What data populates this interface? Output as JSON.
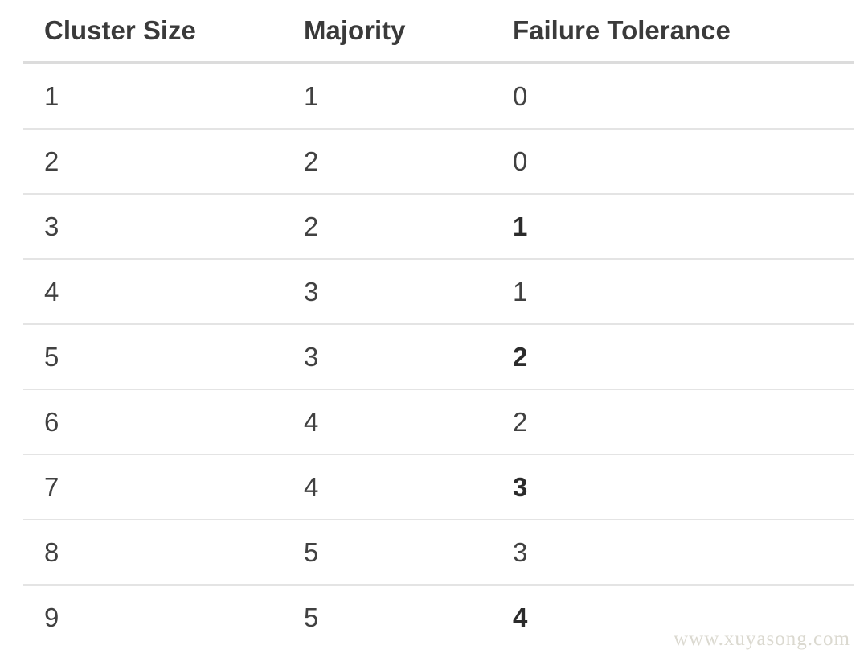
{
  "table": {
    "columns": [
      "Cluster Size",
      "Majority",
      "Failure Tolerance"
    ],
    "rows": [
      {
        "cluster_size": "1",
        "majority": "1",
        "failure_tolerance": "0",
        "ft_bold": false
      },
      {
        "cluster_size": "2",
        "majority": "2",
        "failure_tolerance": "0",
        "ft_bold": false
      },
      {
        "cluster_size": "3",
        "majority": "2",
        "failure_tolerance": "1",
        "ft_bold": true
      },
      {
        "cluster_size": "4",
        "majority": "3",
        "failure_tolerance": "1",
        "ft_bold": false
      },
      {
        "cluster_size": "5",
        "majority": "3",
        "failure_tolerance": "2",
        "ft_bold": true
      },
      {
        "cluster_size": "6",
        "majority": "4",
        "failure_tolerance": "2",
        "ft_bold": false
      },
      {
        "cluster_size": "7",
        "majority": "4",
        "failure_tolerance": "3",
        "ft_bold": true
      },
      {
        "cluster_size": "8",
        "majority": "5",
        "failure_tolerance": "3",
        "ft_bold": false
      },
      {
        "cluster_size": "9",
        "majority": "5",
        "failure_tolerance": "4",
        "ft_bold": true
      }
    ]
  },
  "watermark": "www.xuyasong.com",
  "colors": {
    "header_text": "#3a3a3a",
    "cell_text": "#414141",
    "bold_cell_text": "#2b2b2b",
    "header_border": "#dcdcdc",
    "row_border": "#e4e4e4",
    "watermark_text": "#dbd9d0",
    "background": "#ffffff"
  }
}
